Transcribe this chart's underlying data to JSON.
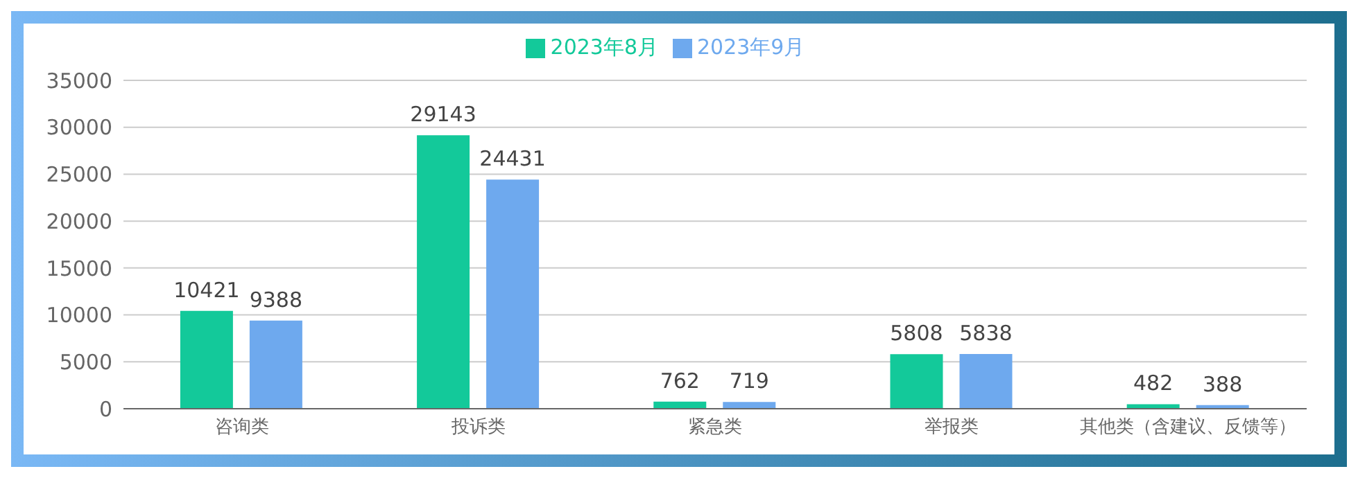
{
  "chart_data": {
    "type": "bar",
    "categories": [
      "咨询类",
      "投诉类",
      "紧急类",
      "举报类",
      "其他类（含建议、反馈等）"
    ],
    "series": [
      {
        "name": "2023年8月",
        "color": "#13c99a",
        "values": [
          10421,
          29143,
          762,
          5808,
          482
        ]
      },
      {
        "name": "2023年9月",
        "color": "#6ea9ee",
        "values": [
          9388,
          24431,
          719,
          5838,
          388
        ]
      }
    ],
    "ylim": [
      0,
      35000
    ],
    "yticks": [
      0,
      5000,
      10000,
      15000,
      20000,
      25000,
      30000,
      35000
    ],
    "grid": "y",
    "legend": "top",
    "data_labels": true
  }
}
